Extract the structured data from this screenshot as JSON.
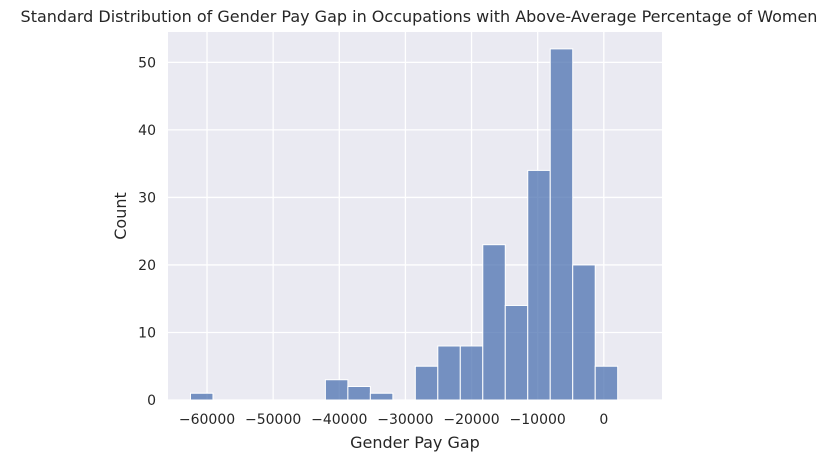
{
  "chart_data": {
    "type": "bar",
    "title": "Standard Distribution of Gender Pay Gap in Occupations with Above-Average Percentage of Women",
    "xlabel": "Gender Pay Gap",
    "ylabel": "Count",
    "xlim": [
      -65900,
      8800
    ],
    "ylim": [
      0,
      54.5
    ],
    "x_ticks": [
      -60000,
      -50000,
      -40000,
      -30000,
      -20000,
      -10000,
      0
    ],
    "x_tick_labels": [
      "−60000",
      "−50000",
      "−40000",
      "−30000",
      "−20000",
      "−10000",
      "0"
    ],
    "y_ticks": [
      0,
      10,
      20,
      30,
      40,
      50
    ],
    "y_tick_labels": [
      "0",
      "10",
      "20",
      "30",
      "40",
      "50"
    ],
    "bin_start": -62500,
    "bin_width": 3400,
    "counts": [
      1,
      0,
      0,
      0,
      0,
      0,
      3,
      2,
      1,
      0,
      5,
      8,
      8,
      23,
      14,
      34,
      52,
      20,
      5
    ],
    "bar_color": "#4c72b0",
    "background_color": "#eaeaf2",
    "grid": true
  }
}
